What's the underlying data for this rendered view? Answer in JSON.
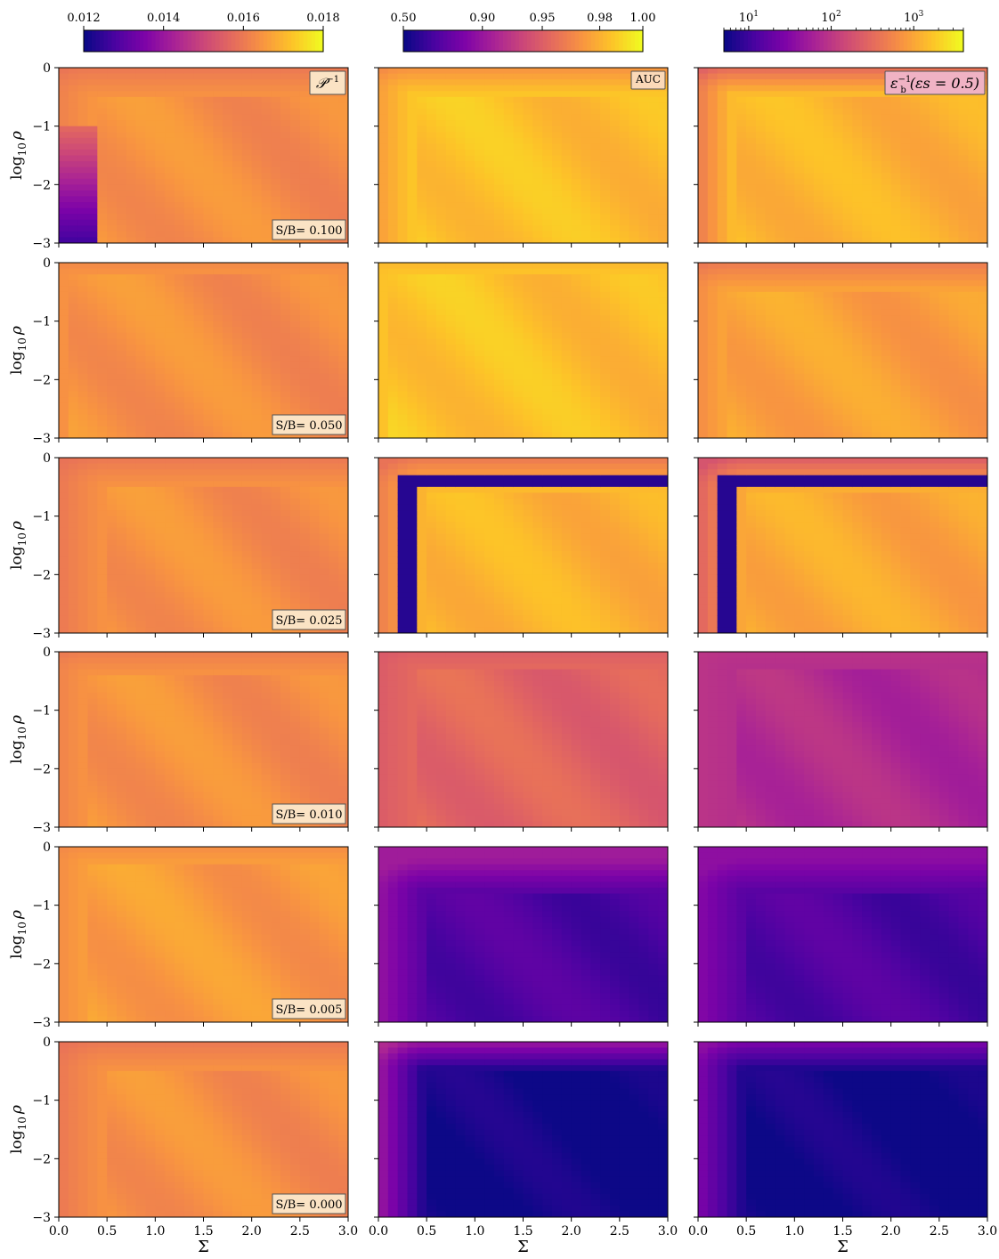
{
  "colorbars": [
    {
      "name": "inverse-P",
      "scale": "linear",
      "min": 0.012,
      "max": 0.018,
      "ticks": [
        {
          "v": 0.012,
          "label": "0.012"
        },
        {
          "v": 0.014,
          "label": "0.014"
        },
        {
          "v": 0.016,
          "label": "0.016"
        },
        {
          "v": 0.018,
          "label": "0.018"
        }
      ]
    },
    {
      "name": "auc",
      "scale": "nonlinear",
      "ticks": [
        {
          "v": 0.5,
          "label": "0.50"
        },
        {
          "v": 0.9,
          "label": "0.90"
        },
        {
          "v": 0.95,
          "label": "0.95"
        },
        {
          "v": 0.98,
          "label": "0.98"
        },
        {
          "v": 1.0,
          "label": "1.00"
        }
      ]
    },
    {
      "name": "inverse-eps-b",
      "scale": "log",
      "min": 5,
      "max": 4000,
      "ticks": [
        {
          "v": 10,
          "base": "10",
          "exp": "1"
        },
        {
          "v": 100,
          "base": "10",
          "exp": "2"
        },
        {
          "v": 1000,
          "base": "10",
          "exp": "3"
        }
      ]
    }
  ],
  "column_labels": [
    {
      "main": "𝒫",
      "sup": "−1",
      "sub": ""
    },
    {
      "main": "AUC",
      "sup": "",
      "sub": ""
    },
    {
      "main": "ε",
      "sup": "−1",
      "sub": "b",
      "rest": "(εs = 0.5)"
    }
  ],
  "row_labels": [
    "S/B= 0.100",
    "S/B= 0.050",
    "S/B= 0.025",
    "S/B= 0.010",
    "S/B= 0.005",
    "S/B= 0.000"
  ],
  "axes": {
    "xlabel": "Σ",
    "ylabel": {
      "main": "log",
      "sub": "10",
      "var": "ρ"
    },
    "xticks": [
      0.0,
      0.5,
      1.0,
      1.5,
      2.0,
      2.5,
      3.0
    ],
    "xtick_labels": [
      "0.0",
      "0.5",
      "1.0",
      "1.5",
      "2.0",
      "2.5",
      "3.0"
    ],
    "yticks": [
      0,
      -1,
      -2,
      -3
    ],
    "ytick_labels": [
      "0",
      "−1",
      "−2",
      "−3"
    ],
    "xlim": [
      0,
      3
    ],
    "ylim": [
      -3,
      0
    ]
  },
  "colormap": "plasma",
  "chart_data": {
    "type": "heatmap",
    "grid": {
      "x_min": 0.0,
      "x_max": 3.0,
      "x_bins": 30,
      "y_min": -3.0,
      "y_max": 0.0,
      "y_bins": 30
    },
    "note_rows": "rows are S/B = 0.100, 0.050, 0.025, 0.010, 0.005, 0.000 (top to bottom)",
    "panels": [
      {
        "row": 0,
        "col": 0,
        "metric": "P^-1",
        "level_frac": 0.75,
        "shoulder": {
          "x": 0.35,
          "y": -0.5
        },
        "dark_band": {
          "x_from": 0.0,
          "x_to": 0.38,
          "y_from": -3.0,
          "y_to": -1.0,
          "frac": 0.1
        }
      },
      {
        "row": 0,
        "col": 1,
        "metric": "AUC",
        "level_frac": 0.88,
        "shoulder": {
          "x": 0.35,
          "y": -0.45
        },
        "band_frac": 0.7
      },
      {
        "row": 0,
        "col": 2,
        "metric": "eps_b^-1",
        "level_frac": 0.85,
        "shoulder": {
          "x": 0.35,
          "y": -0.45
        },
        "band_frac": 0.55
      },
      {
        "row": 1,
        "col": 0,
        "metric": "P^-1",
        "level_frac": 0.75,
        "shoulder": {
          "x": 0.1,
          "y": -0.2
        }
      },
      {
        "row": 1,
        "col": 1,
        "metric": "AUC",
        "level_frac": 0.88,
        "shoulder": {
          "x": 0.1,
          "y": -0.2
        }
      },
      {
        "row": 1,
        "col": 2,
        "metric": "eps_b^-1",
        "level_frac": 0.8,
        "shoulder": {
          "x": 0.3,
          "y": -0.5
        },
        "band_frac": 0.65
      },
      {
        "row": 2,
        "col": 0,
        "metric": "P^-1",
        "level_frac": 0.75,
        "shoulder": {
          "x": 0.5,
          "y": -0.5
        }
      },
      {
        "row": 2,
        "col": 1,
        "metric": "AUC",
        "level_frac": 0.85,
        "shoulder": {
          "x": 0.5,
          "y": -0.55
        },
        "ring_frac": 0.05,
        "band_frac": 0.65
      },
      {
        "row": 2,
        "col": 2,
        "metric": "eps_b^-1",
        "level_frac": 0.82,
        "shoulder": {
          "x": 0.5,
          "y": -0.55
        },
        "ring_frac": 0.05,
        "band_frac": 0.55
      },
      {
        "row": 3,
        "col": 0,
        "metric": "P^-1",
        "level_frac": 0.75,
        "shoulder": {
          "x": 0.3,
          "y": -0.4
        }
      },
      {
        "row": 3,
        "col": 1,
        "metric": "AUC",
        "level_frac": 0.62,
        "shoulder": {
          "x": 0.4,
          "y": -0.3
        },
        "band_frac": 0.55
      },
      {
        "row": 3,
        "col": 2,
        "metric": "eps_b^-1",
        "level_frac": 0.42,
        "shoulder": {
          "x": 0.4,
          "y": -0.3
        },
        "band_frac": 0.45
      },
      {
        "row": 4,
        "col": 0,
        "metric": "P^-1",
        "level_frac": 0.78,
        "shoulder": {
          "x": 0.3,
          "y": -0.3
        }
      },
      {
        "row": 4,
        "col": 1,
        "metric": "AUC",
        "level_frac": 0.15,
        "shoulder": {
          "x": 0.5,
          "y": -0.8
        },
        "band_frac": 0.35
      },
      {
        "row": 4,
        "col": 2,
        "metric": "eps_b^-1",
        "level_frac": 0.15,
        "shoulder": {
          "x": 0.5,
          "y": -0.8
        },
        "band_frac": 0.3
      },
      {
        "row": 5,
        "col": 0,
        "metric": "P^-1",
        "level_frac": 0.75,
        "shoulder": {
          "x": 0.5,
          "y": -0.5
        }
      },
      {
        "row": 5,
        "col": 1,
        "metric": "AUC",
        "level_frac": 0.02,
        "shoulder": {
          "x": 0.5,
          "y": -0.5
        },
        "band_frac": 0.4
      },
      {
        "row": 5,
        "col": 2,
        "metric": "eps_b^-1",
        "level_frac": 0.02,
        "shoulder": {
          "x": 0.5,
          "y": -0.5
        },
        "band_frac": 0.3
      }
    ]
  }
}
